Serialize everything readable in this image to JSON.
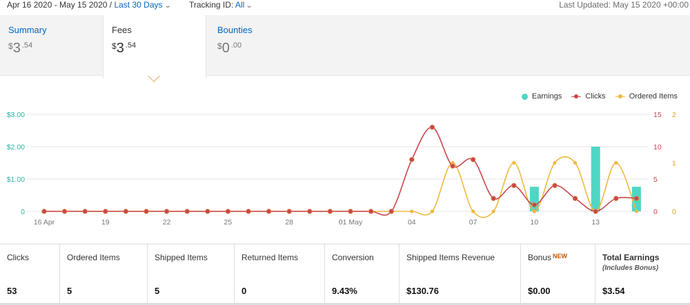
{
  "header": {
    "date_range": "Apr 16 2020 - May 15 2020",
    "separator": " / ",
    "range_preset": "Last 30 Days",
    "tracking_label": "Tracking ID:",
    "tracking_value": "All",
    "last_updated": "Last Updated: May 15 2020 +00:00"
  },
  "tabs": [
    {
      "label": "Summary",
      "currency": "$",
      "dollars": "3",
      "cents": ".54"
    },
    {
      "label": "Fees",
      "currency": "$",
      "dollars": "3",
      "cents": ".54"
    },
    {
      "label": "Bounties",
      "currency": "$",
      "dollars": "0",
      "cents": ".00"
    }
  ],
  "legend": {
    "earnings": "Earnings",
    "clicks": "Clicks",
    "ordered": "Ordered Items"
  },
  "colors": {
    "earnings": "#4fd6c4",
    "clicks": "#c8464b",
    "ordered": "#f0b840",
    "grid": "#e6e6e6"
  },
  "chart_data": {
    "type": "bar+line",
    "x_ticks": [
      "16 Apr",
      "19",
      "22",
      "25",
      "28",
      "01 May",
      "04",
      "07",
      "10",
      "13"
    ],
    "y_left_ticks": [
      "0",
      "$1.00",
      "$2.00",
      "$3.00"
    ],
    "y_left_range": [
      0,
      3
    ],
    "y_mid_ticks": [
      "0",
      "5",
      "10",
      "15"
    ],
    "y_mid_range": [
      0,
      15
    ],
    "y_right_ticks": [
      "0",
      "1",
      "2"
    ],
    "y_right_range": [
      0,
      2
    ],
    "dates": [
      "04-16",
      "04-17",
      "04-18",
      "04-19",
      "04-20",
      "04-21",
      "04-22",
      "04-23",
      "04-24",
      "04-25",
      "04-26",
      "04-27",
      "04-28",
      "04-29",
      "04-30",
      "05-01",
      "05-02",
      "05-03",
      "05-04",
      "05-05",
      "05-06",
      "05-07",
      "05-08",
      "05-09",
      "05-10",
      "05-11",
      "05-12",
      "05-13",
      "05-14",
      "05-15"
    ],
    "series": [
      {
        "name": "Earnings",
        "type": "bar",
        "axis": "left",
        "values": [
          0,
          0,
          0,
          0,
          0,
          0,
          0,
          0,
          0,
          0,
          0,
          0,
          0,
          0,
          0,
          0,
          0,
          0,
          0,
          0,
          0,
          0,
          0,
          0,
          0.76,
          0,
          0,
          2.0,
          0,
          0.76
        ]
      },
      {
        "name": "Clicks",
        "type": "line",
        "axis": "mid",
        "values": [
          0,
          0,
          0,
          0,
          0,
          0,
          0,
          0,
          0,
          0,
          0,
          0,
          0,
          0,
          0,
          0,
          0,
          0,
          8,
          13,
          7,
          8,
          2,
          4,
          1,
          4,
          2,
          0,
          2,
          2
        ]
      },
      {
        "name": "Ordered Items",
        "type": "line",
        "axis": "right",
        "values": [
          0,
          0,
          0,
          0,
          0,
          0,
          0,
          0,
          0,
          0,
          0,
          0,
          0,
          0,
          0,
          0,
          0,
          0,
          0,
          0,
          1,
          0,
          0,
          1,
          0,
          1,
          1,
          0,
          1,
          0
        ]
      }
    ]
  },
  "stats": [
    {
      "label": "Clicks",
      "value": "53"
    },
    {
      "label": "Ordered Items",
      "value": "5"
    },
    {
      "label": "Shipped Items",
      "value": "5"
    },
    {
      "label": "Returned Items",
      "value": "0"
    },
    {
      "label": "Conversion",
      "value": "9.43%"
    },
    {
      "label": "Shipped Items Revenue",
      "value": "$130.76"
    },
    {
      "label": "Bonus",
      "badge": "NEW",
      "value": "$0.00"
    },
    {
      "label": "Total Earnings",
      "note": "(Includes Bonus)",
      "value": "$3.54"
    }
  ]
}
